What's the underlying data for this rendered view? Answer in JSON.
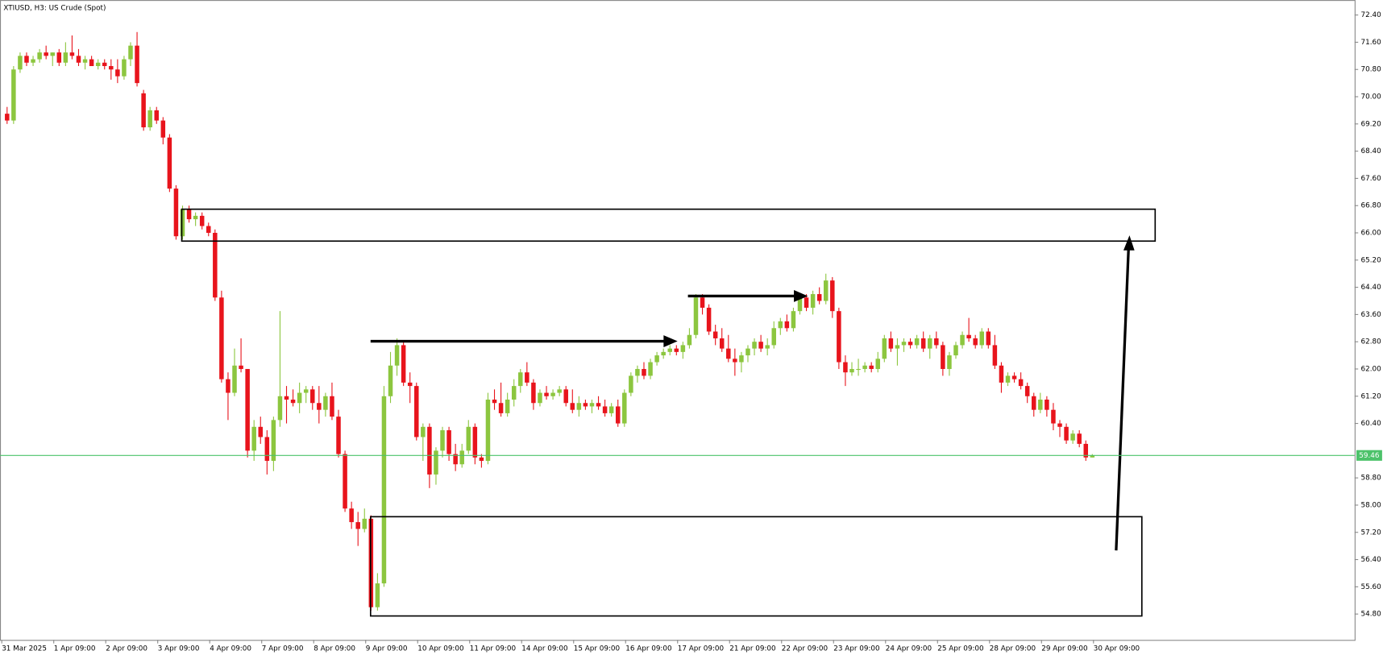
{
  "chart_data": {
    "type": "candlestick",
    "title": "XTIUSD, H3:  US Crude (Spot)",
    "up_color": "#8cc63f",
    "down_color": "#e8141c",
    "price_line_color": "#4cc26a",
    "ylim": [
      54.04,
      72.84
    ],
    "yticks": [
      {
        "value": 72.4,
        "label": "72.40"
      },
      {
        "value": 71.6,
        "label": "71.60"
      },
      {
        "value": 70.8,
        "label": "70.80"
      },
      {
        "value": 70,
        "label": "70.00"
      },
      {
        "value": 69.2,
        "label": "69.20"
      },
      {
        "value": 68.4,
        "label": "68.40"
      },
      {
        "value": 67.6,
        "label": "67.60"
      },
      {
        "value": 66.8,
        "label": "66.80"
      },
      {
        "value": 66,
        "label": "66.00"
      },
      {
        "value": 65.2,
        "label": "65.20"
      },
      {
        "value": 64.4,
        "label": "64.40"
      },
      {
        "value": 63.6,
        "label": "63.60"
      },
      {
        "value": 62.8,
        "label": "62.80"
      },
      {
        "value": 62,
        "label": "62.00"
      },
      {
        "value": 61.2,
        "label": "61.20"
      },
      {
        "value": 60.4,
        "label": "60.40"
      },
      {
        "value": 58.8,
        "label": "58.80"
      },
      {
        "value": 58,
        "label": "58.00"
      },
      {
        "value": 57.2,
        "label": "57.20"
      },
      {
        "value": 56.4,
        "label": "56.40"
      },
      {
        "value": 55.6,
        "label": "55.60"
      },
      {
        "value": 54.8,
        "label": "54.80"
      }
    ],
    "current_price": {
      "value": 59.46,
      "label": "59.46"
    },
    "x_labels": [
      "31 Mar 2025",
      "1 Apr 09:00",
      "2 Apr 09:00",
      "3 Apr 09:00",
      "4 Apr 09:00",
      "7 Apr 09:00",
      "8 Apr 09:00",
      "9 Apr 09:00",
      "10 Apr 09:00",
      "11 Apr 09:00",
      "14 Apr 09:00",
      "15 Apr 09:00",
      "16 Apr 09:00",
      "17 Apr 09:00",
      "21 Apr 09:00",
      "22 Apr 09:00",
      "23 Apr 09:00",
      "24 Apr 09:00",
      "25 Apr 09:00",
      "28 Apr 09:00",
      "29 Apr 09:00",
      "30 Apr 09:00"
    ],
    "candles": [
      [
        69.5,
        69.7,
        69.2,
        69.3
      ],
      [
        69.3,
        70.9,
        69.2,
        70.8
      ],
      [
        70.8,
        71.3,
        70.7,
        71.2
      ],
      [
        71.2,
        71.3,
        70.9,
        71.0
      ],
      [
        71.0,
        71.2,
        70.9,
        71.1
      ],
      [
        71.1,
        71.4,
        71.0,
        71.3
      ],
      [
        71.3,
        71.5,
        71.1,
        71.2
      ],
      [
        71.2,
        71.3,
        70.9,
        71.3
      ],
      [
        71.3,
        71.4,
        70.9,
        71.0
      ],
      [
        71.0,
        71.6,
        70.9,
        71.3
      ],
      [
        71.3,
        71.8,
        71.1,
        71.2
      ],
      [
        71.2,
        71.4,
        70.9,
        71.0
      ],
      [
        71.0,
        71.2,
        70.8,
        71.1
      ],
      [
        71.1,
        71.2,
        70.9,
        70.9
      ],
      [
        70.9,
        71.1,
        70.8,
        71.0
      ],
      [
        71.0,
        71.1,
        70.8,
        70.9
      ],
      [
        70.9,
        71.1,
        70.5,
        70.8
      ],
      [
        70.8,
        71.1,
        70.4,
        70.6
      ],
      [
        70.6,
        71.2,
        70.5,
        71.1
      ],
      [
        71.1,
        71.6,
        70.9,
        71.5
      ],
      [
        71.5,
        71.9,
        70.3,
        70.4
      ],
      [
        70.1,
        70.2,
        69.0,
        69.1
      ],
      [
        69.1,
        69.7,
        69.0,
        69.6
      ],
      [
        69.6,
        69.7,
        69.2,
        69.3
      ],
      [
        69.3,
        69.4,
        68.6,
        68.8
      ],
      [
        68.8,
        68.9,
        67.2,
        67.3
      ],
      [
        67.3,
        67.4,
        65.8,
        65.9
      ],
      [
        65.9,
        66.8,
        65.8,
        66.7
      ],
      [
        66.7,
        66.8,
        66.3,
        66.4
      ],
      [
        66.4,
        66.6,
        66.2,
        66.5
      ],
      [
        66.5,
        66.6,
        66.1,
        66.2
      ],
      [
        66.2,
        66.3,
        65.9,
        66.0
      ],
      [
        66.0,
        66.1,
        64.0,
        64.1
      ],
      [
        64.1,
        64.3,
        61.6,
        61.7
      ],
      [
        61.7,
        61.9,
        60.5,
        61.3
      ],
      [
        61.3,
        62.6,
        61.2,
        62.1
      ],
      [
        62.1,
        62.9,
        61.9,
        62.0
      ],
      [
        62.0,
        62.0,
        59.4,
        59.6
      ],
      [
        59.6,
        60.5,
        59.3,
        60.3
      ],
      [
        60.3,
        60.6,
        59.8,
        60.0
      ],
      [
        60.0,
        60.2,
        58.9,
        59.3
      ],
      [
        59.3,
        60.6,
        59.0,
        60.5
      ],
      [
        60.5,
        63.7,
        60.3,
        61.2
      ],
      [
        61.2,
        61.5,
        60.4,
        61.1
      ],
      [
        61.1,
        61.4,
        60.9,
        61.0
      ],
      [
        61.0,
        61.6,
        60.7,
        61.3
      ],
      [
        61.3,
        61.5,
        61.0,
        61.4
      ],
      [
        61.4,
        61.5,
        60.8,
        61.0
      ],
      [
        61.0,
        61.5,
        60.4,
        60.8
      ],
      [
        60.8,
        61.3,
        60.6,
        61.2
      ],
      [
        61.2,
        61.6,
        60.5,
        60.6
      ],
      [
        60.6,
        60.8,
        59.4,
        59.5
      ],
      [
        59.5,
        59.6,
        57.8,
        57.9
      ],
      [
        57.9,
        58.1,
        57.3,
        57.5
      ],
      [
        57.5,
        57.8,
        56.8,
        57.3
      ],
      [
        57.3,
        57.9,
        57.2,
        57.6
      ],
      [
        57.6,
        57.7,
        54.9,
        55.0
      ],
      [
        55.0,
        56.0,
        54.9,
        55.7
      ],
      [
        55.7,
        61.5,
        55.6,
        61.2
      ],
      [
        61.2,
        62.5,
        61.0,
        62.1
      ],
      [
        62.1,
        62.9,
        61.8,
        62.7
      ],
      [
        62.7,
        62.8,
        61.5,
        61.6
      ],
      [
        61.6,
        61.9,
        61.0,
        61.5
      ],
      [
        61.5,
        61.6,
        59.9,
        60.0
      ],
      [
        60.0,
        60.4,
        59.3,
        60.3
      ],
      [
        60.3,
        60.4,
        58.5,
        58.9
      ],
      [
        58.9,
        59.7,
        58.6,
        59.6
      ],
      [
        59.6,
        60.3,
        59.4,
        60.2
      ],
      [
        60.2,
        60.3,
        59.3,
        59.5
      ],
      [
        59.5,
        59.8,
        59.0,
        59.2
      ],
      [
        59.2,
        59.8,
        59.1,
        59.6
      ],
      [
        59.6,
        60.5,
        59.5,
        60.3
      ],
      [
        60.3,
        60.4,
        59.2,
        59.4
      ],
      [
        59.4,
        59.5,
        59.1,
        59.3
      ],
      [
        59.3,
        61.3,
        59.2,
        61.1
      ],
      [
        61.1,
        61.4,
        60.8,
        61.0
      ],
      [
        61.0,
        61.6,
        60.6,
        60.7
      ],
      [
        60.7,
        61.3,
        60.6,
        61.1
      ],
      [
        61.1,
        61.7,
        60.9,
        61.5
      ],
      [
        61.5,
        62.0,
        61.3,
        61.9
      ],
      [
        61.9,
        62.2,
        61.5,
        61.6
      ],
      [
        61.6,
        61.7,
        60.8,
        61.0
      ],
      [
        61.0,
        61.4,
        60.9,
        61.3
      ],
      [
        61.3,
        61.5,
        61.1,
        61.2
      ],
      [
        61.2,
        61.4,
        61.1,
        61.3
      ],
      [
        61.3,
        61.5,
        61.2,
        61.4
      ],
      [
        61.4,
        61.5,
        60.9,
        61.0
      ],
      [
        61.0,
        61.4,
        60.7,
        60.8
      ],
      [
        60.8,
        61.2,
        60.6,
        61.0
      ],
      [
        61.0,
        61.1,
        60.8,
        60.9
      ],
      [
        60.9,
        61.1,
        60.7,
        61.0
      ],
      [
        61.0,
        61.2,
        60.8,
        60.9
      ],
      [
        60.9,
        61.1,
        60.6,
        60.7
      ],
      [
        60.7,
        61.0,
        60.6,
        60.9
      ],
      [
        60.9,
        61.1,
        60.3,
        60.4
      ],
      [
        60.4,
        61.4,
        60.3,
        61.3
      ],
      [
        61.3,
        61.9,
        61.2,
        61.8
      ],
      [
        61.8,
        62.1,
        61.6,
        62.0
      ],
      [
        62.0,
        62.2,
        61.7,
        61.8
      ],
      [
        61.8,
        62.3,
        61.7,
        62.2
      ],
      [
        62.2,
        62.5,
        62.1,
        62.4
      ],
      [
        62.4,
        62.6,
        62.3,
        62.5
      ],
      [
        62.5,
        62.7,
        62.4,
        62.6
      ],
      [
        62.6,
        62.7,
        62.4,
        62.5
      ],
      [
        62.5,
        62.8,
        62.3,
        62.7
      ],
      [
        62.7,
        63.2,
        62.6,
        63.0
      ],
      [
        63.0,
        64.2,
        62.9,
        64.1
      ],
      [
        64.1,
        64.2,
        63.6,
        63.8
      ],
      [
        63.8,
        63.9,
        63.0,
        63.1
      ],
      [
        63.1,
        63.3,
        62.7,
        62.9
      ],
      [
        62.9,
        63.2,
        62.5,
        62.6
      ],
      [
        62.6,
        63.0,
        62.2,
        62.3
      ],
      [
        62.3,
        62.6,
        61.8,
        62.2
      ],
      [
        62.2,
        62.5,
        61.9,
        62.4
      ],
      [
        62.4,
        62.7,
        62.2,
        62.6
      ],
      [
        62.6,
        62.9,
        62.4,
        62.8
      ],
      [
        62.8,
        63.0,
        62.5,
        62.6
      ],
      [
        62.6,
        62.9,
        62.4,
        62.7
      ],
      [
        62.7,
        63.4,
        62.6,
        63.2
      ],
      [
        63.2,
        63.5,
        63.0,
        63.4
      ],
      [
        63.4,
        63.6,
        63.1,
        63.2
      ],
      [
        63.2,
        63.8,
        63.1,
        63.7
      ],
      [
        63.7,
        64.2,
        63.6,
        64.1
      ],
      [
        64.1,
        64.2,
        63.7,
        63.8
      ],
      [
        63.8,
        64.3,
        63.6,
        64.2
      ],
      [
        64.2,
        64.4,
        63.9,
        64.0
      ],
      [
        64.0,
        64.8,
        63.9,
        64.6
      ],
      [
        64.6,
        64.7,
        63.5,
        63.7
      ],
      [
        63.7,
        63.8,
        62.0,
        62.2
      ],
      [
        62.2,
        62.4,
        61.5,
        61.9
      ],
      [
        61.9,
        62.2,
        61.8,
        62.0
      ],
      [
        62.0,
        62.3,
        61.8,
        62.0
      ],
      [
        62.0,
        62.2,
        61.9,
        62.1
      ],
      [
        62.1,
        62.2,
        61.9,
        62.0
      ],
      [
        62.0,
        62.5,
        61.9,
        62.3
      ],
      [
        62.3,
        63.0,
        62.2,
        62.9
      ],
      [
        62.9,
        63.1,
        62.5,
        62.6
      ],
      [
        62.6,
        62.9,
        62.1,
        62.7
      ],
      [
        62.7,
        62.9,
        62.5,
        62.8
      ],
      [
        62.8,
        62.9,
        62.6,
        62.7
      ],
      [
        62.7,
        63.0,
        62.6,
        62.9
      ],
      [
        62.9,
        63.1,
        62.5,
        62.6
      ],
      [
        62.6,
        63.0,
        62.3,
        62.9
      ],
      [
        62.9,
        63.1,
        62.6,
        62.7
      ],
      [
        62.7,
        62.8,
        61.8,
        62.0
      ],
      [
        62.0,
        62.5,
        61.8,
        62.4
      ],
      [
        62.4,
        62.8,
        62.3,
        62.7
      ],
      [
        62.7,
        63.1,
        62.6,
        63.0
      ],
      [
        63.0,
        63.5,
        62.8,
        62.9
      ],
      [
        62.9,
        63.0,
        62.6,
        62.7
      ],
      [
        62.7,
        63.2,
        62.6,
        63.1
      ],
      [
        63.1,
        63.2,
        62.6,
        62.7
      ],
      [
        62.7,
        63.0,
        62.0,
        62.1
      ],
      [
        62.1,
        62.2,
        61.3,
        61.6
      ],
      [
        61.6,
        61.9,
        61.5,
        61.8
      ],
      [
        61.8,
        61.9,
        61.6,
        61.7
      ],
      [
        61.7,
        61.9,
        61.4,
        61.5
      ],
      [
        61.5,
        61.6,
        61.0,
        61.2
      ],
      [
        61.2,
        61.3,
        60.6,
        60.8
      ],
      [
        60.8,
        61.3,
        60.7,
        61.1
      ],
      [
        61.1,
        61.2,
        60.6,
        60.8
      ],
      [
        60.8,
        61.0,
        60.2,
        60.4
      ],
      [
        60.4,
        60.5,
        60.0,
        60.3
      ],
      [
        60.3,
        60.4,
        59.8,
        59.9
      ],
      [
        59.9,
        60.2,
        59.8,
        60.1
      ],
      [
        60.1,
        60.2,
        59.7,
        59.8
      ],
      [
        59.8,
        59.9,
        59.3,
        59.4
      ],
      [
        59.4,
        59.5,
        59.4,
        59.46
      ]
    ]
  }
}
